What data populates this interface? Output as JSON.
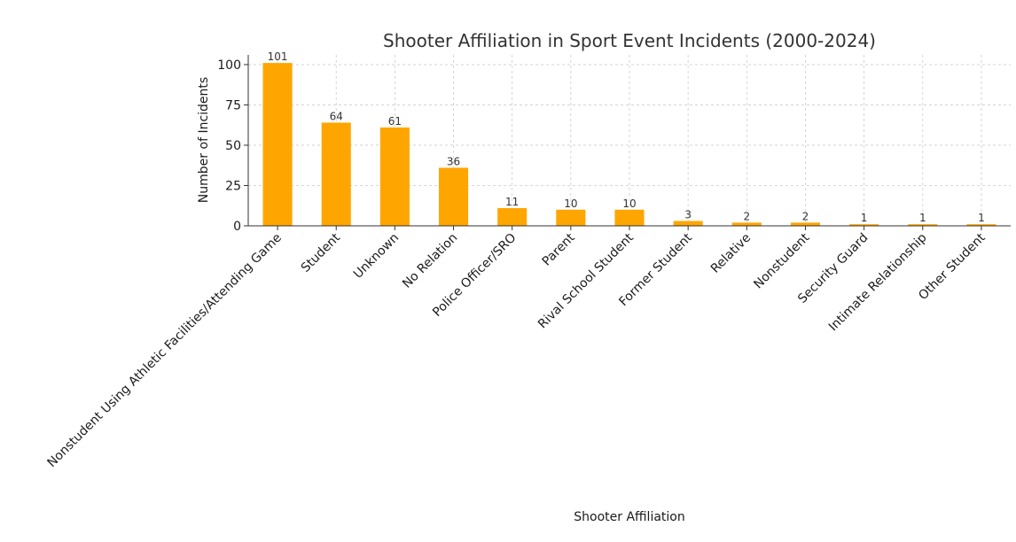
{
  "chart_data": {
    "type": "bar",
    "title": "Shooter Affiliation in Sport Event Incidents (2000-2024)",
    "xlabel": "Shooter Affiliation",
    "ylabel": "Number of Incidents",
    "categories": [
      "Nonstudent Using Athletic Facilities/Attending Game",
      "Student",
      "Unknown",
      "No Relation",
      "Police Officer/SRO",
      "Parent",
      "Rival School Student",
      "Former Student",
      "Relative",
      "Nonstudent",
      "Security Guard",
      "Intimate Relationship",
      "Other Student"
    ],
    "values": [
      101,
      64,
      61,
      36,
      11,
      10,
      10,
      3,
      2,
      2,
      1,
      1,
      1
    ],
    "ylim": [
      0,
      106
    ],
    "yticks": [
      0,
      25,
      50,
      75,
      100
    ],
    "grid": true,
    "bar_color": "#FFA500"
  }
}
